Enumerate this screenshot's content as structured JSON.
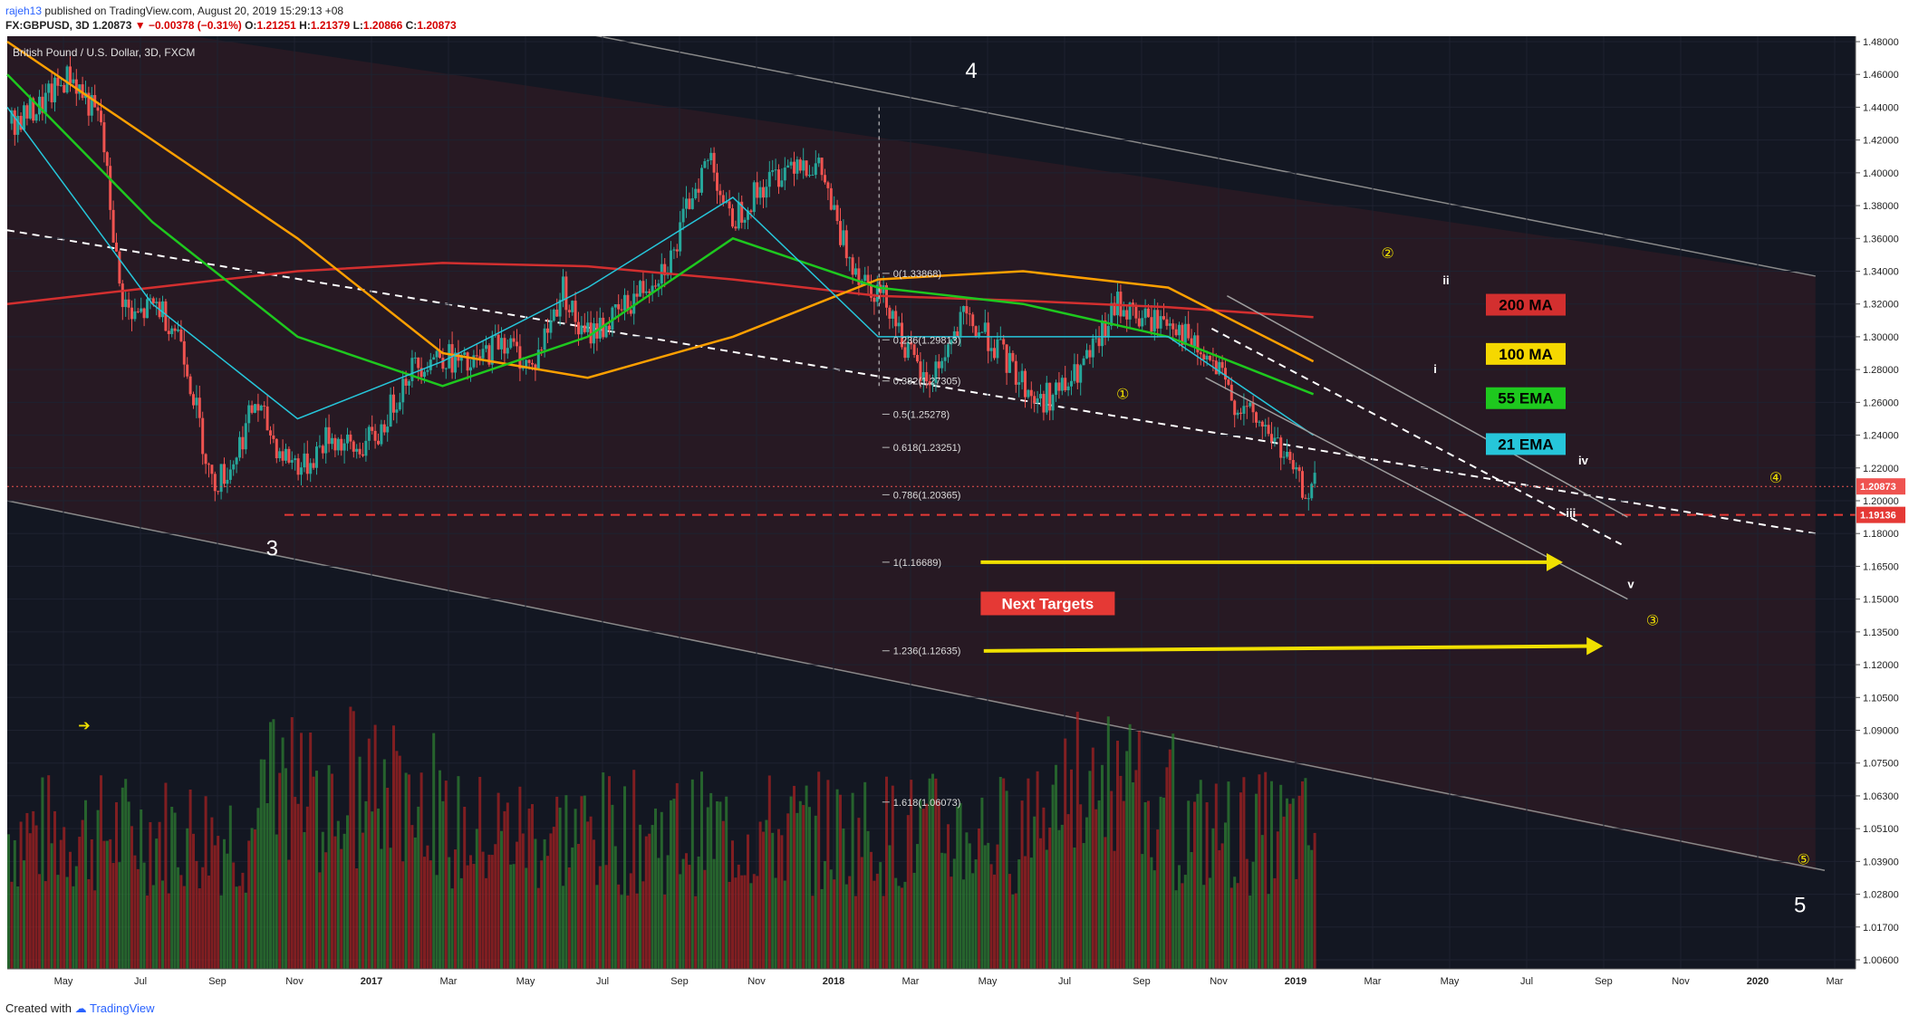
{
  "header": {
    "author": "rajeh13",
    "published": "published on TradingView.com, August 20, 2019 15:29:13 +08",
    "symbol": "FX:GBPUSD, 3D",
    "last": "1.20873",
    "change": "−0.00378 (−0.31%)",
    "open_label": "O:",
    "open": "1.21251",
    "high_label": "H:",
    "high": "1.21379",
    "low_label": "L:",
    "low": "1.20866",
    "close_label": "C:",
    "close": "1.20873"
  },
  "footer": {
    "created_with": "Created with",
    "brand": "TradingView"
  },
  "colors": {
    "background": "#131722",
    "zone": "#2a1a23",
    "up_candle": "#26a69a",
    "down_candle": "#ef5350",
    "ma200": "#d32f2f",
    "ma100": "#ffa000",
    "ema55": "#1ec81e",
    "ema21": "#26c6da",
    "target_arrow": "#f0e000"
  },
  "chart_data": {
    "type": "candlestick",
    "title": "British Pound / U.S. Dollar, 3D, FXCM",
    "y_ticks": [
      "1.48000",
      "1.46000",
      "1.44000",
      "1.42000",
      "1.40000",
      "1.38000",
      "1.36000",
      "1.34000",
      "1.32000",
      "1.30000",
      "1.28000",
      "1.26000",
      "1.24000",
      "1.22000",
      "1.20000",
      "1.18000",
      "1.16500",
      "1.15000",
      "1.13500",
      "1.12000",
      "1.10500",
      "1.09000",
      "1.07500",
      "1.06300",
      "1.05100",
      "1.03900",
      "1.02800",
      "1.01700",
      "1.00600"
    ],
    "x_ticks": [
      "May",
      "Jul",
      "Sep",
      "Nov",
      "2017",
      "Mar",
      "May",
      "Jul",
      "Sep",
      "Nov",
      "2018",
      "Mar",
      "May",
      "Jul",
      "Sep",
      "Nov",
      "2019",
      "Mar",
      "May",
      "Jul",
      "Sep",
      "Nov",
      "2020",
      "Mar"
    ],
    "last_price": "1.20873",
    "support_level": "1.19136",
    "price_path": [
      [
        0,
        1.43
      ],
      [
        10,
        1.44
      ],
      [
        20,
        1.46
      ],
      [
        30,
        1.43
      ],
      [
        36,
        1.33
      ],
      [
        40,
        1.31
      ],
      [
        48,
        1.32
      ],
      [
        56,
        1.3
      ],
      [
        66,
        1.21
      ],
      [
        72,
        1.22
      ],
      [
        80,
        1.26
      ],
      [
        88,
        1.23
      ],
      [
        96,
        1.22
      ],
      [
        104,
        1.24
      ],
      [
        112,
        1.23
      ],
      [
        120,
        1.24
      ],
      [
        130,
        1.28
      ],
      [
        140,
        1.29
      ],
      [
        150,
        1.28
      ],
      [
        160,
        1.3
      ],
      [
        170,
        1.28
      ],
      [
        180,
        1.33
      ],
      [
        186,
        1.3
      ],
      [
        196,
        1.31
      ],
      [
        206,
        1.33
      ],
      [
        216,
        1.35
      ],
      [
        222,
        1.39
      ],
      [
        228,
        1.41
      ],
      [
        234,
        1.37
      ],
      [
        244,
        1.39
      ],
      [
        256,
        1.41
      ],
      [
        264,
        1.4
      ],
      [
        270,
        1.36
      ],
      [
        276,
        1.34
      ],
      [
        286,
        1.32
      ],
      [
        292,
        1.29
      ],
      [
        298,
        1.27
      ],
      [
        304,
        1.29
      ],
      [
        310,
        1.31
      ],
      [
        318,
        1.3
      ],
      [
        326,
        1.28
      ],
      [
        334,
        1.26
      ],
      [
        344,
        1.27
      ],
      [
        352,
        1.29
      ],
      [
        360,
        1.32
      ],
      [
        368,
        1.31
      ],
      [
        378,
        1.31
      ],
      [
        386,
        1.29
      ],
      [
        392,
        1.28
      ],
      [
        398,
        1.26
      ],
      [
        404,
        1.25
      ],
      [
        410,
        1.24
      ],
      [
        416,
        1.22
      ],
      [
        420,
        1.206
      ],
      [
        424,
        1.209
      ]
    ],
    "fib_levels": [
      {
        "label": "0(1.33868)",
        "value": 1.33868
      },
      {
        "label": "0.236(1.29813)",
        "value": 1.29813
      },
      {
        "label": "0.382(1.27305)",
        "value": 1.27305
      },
      {
        "label": "0.5(1.25278)",
        "value": 1.25278
      },
      {
        "label": "0.618(1.23251)",
        "value": 1.23251
      },
      {
        "label": "0.786(1.20365)",
        "value": 1.20365
      },
      {
        "label": "1(1.16689)",
        "value": 1.16689
      },
      {
        "label": "1.236(1.12635)",
        "value": 1.12635
      },
      {
        "label": "1.618(1.06073)",
        "value": 1.06073
      }
    ],
    "legend": [
      {
        "name": "200 MA",
        "color": "#d32f2f",
        "text_color": "#000000",
        "value_at": [
          1.32,
          1.33,
          1.34,
          1.345,
          1.343,
          1.335,
          1.325,
          1.322,
          1.318,
          1.312
        ]
      },
      {
        "name": "100 MA",
        "color": "#f5d800",
        "text_color": "#000000",
        "value_at": [
          1.48,
          1.42,
          1.36,
          1.29,
          1.275,
          1.3,
          1.335,
          1.34,
          1.33,
          1.285
        ]
      },
      {
        "name": "55 EMA",
        "color": "#1ec81e",
        "text_color": "#000000",
        "value_at": [
          1.46,
          1.37,
          1.3,
          1.27,
          1.3,
          1.36,
          1.33,
          1.32,
          1.3,
          1.265
        ]
      },
      {
        "name": "21 EMA",
        "color": "#26c6da",
        "text_color": "#000000",
        "value_at": [
          1.44,
          1.32,
          1.25,
          1.285,
          1.33,
          1.385,
          1.3,
          1.3,
          1.3,
          1.24
        ]
      }
    ],
    "wave_labels": [
      "3",
      "4",
      "5"
    ],
    "minor_wave_labels": [
      "①",
      "②",
      "③",
      "④",
      "⑤"
    ],
    "sub_wave_labels": [
      "i",
      "ii",
      "iii",
      "iv",
      "v"
    ],
    "annotation": "Next Targets"
  }
}
